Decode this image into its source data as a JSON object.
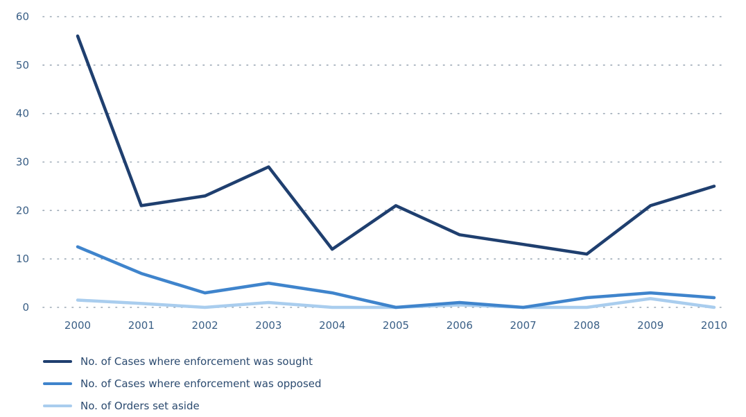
{
  "chart_data": {
    "type": "line",
    "title": "",
    "xlabel": "",
    "ylabel": "",
    "categories": [
      "2000",
      "2001",
      "2002",
      "2003",
      "2004",
      "2005",
      "2006",
      "2007",
      "2008",
      "2009",
      "2010"
    ],
    "ylim": [
      0,
      60
    ],
    "yticks": [
      0,
      10,
      20,
      30,
      40,
      50,
      60
    ],
    "grid": "horizontal dotted",
    "legend_position": "bottom-left",
    "series": [
      {
        "name": "No. of Cases where enforcement was sought",
        "color": "#1f3f6f",
        "values": [
          56,
          21,
          23,
          29,
          12,
          21,
          15,
          13,
          11,
          21,
          25
        ]
      },
      {
        "name": "No. of Cases where enforcement was opposed",
        "color": "#3f84cc",
        "values": [
          12.5,
          7,
          3,
          5,
          3,
          0,
          1,
          0,
          2,
          3,
          2
        ]
      },
      {
        "name": "No. of Orders set aside",
        "color": "#a9cdee",
        "values": [
          1.5,
          0.8,
          0,
          1,
          0,
          0,
          0.5,
          0,
          0,
          1.8,
          0
        ]
      }
    ]
  }
}
